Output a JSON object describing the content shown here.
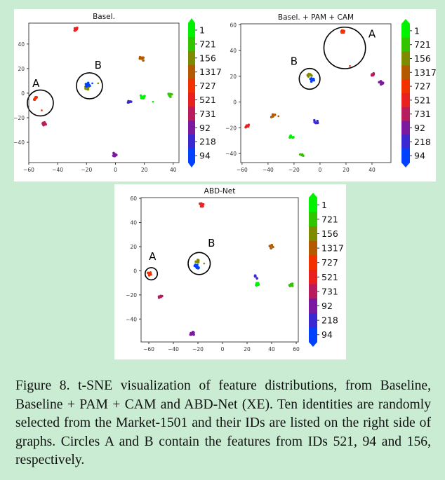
{
  "colors": {
    "1": "#00f200",
    "721": "#33c400",
    "156": "#7e8a00",
    "1317": "#b35a00",
    "727": "#f23000",
    "521": "#e82020",
    "731": "#b81c5c",
    "92": "#7a1aa0",
    "218": "#3a28d0",
    "94": "#0040ff"
  },
  "legend_ids": [
    "1",
    "721",
    "156",
    "1317",
    "727",
    "521",
    "731",
    "92",
    "218",
    "94"
  ],
  "chart_data": [
    {
      "type": "scatter",
      "title": "Basel.",
      "xlim": [
        -60,
        44
      ],
      "ylim": [
        -56.5,
        57
      ],
      "xticks": [
        -60,
        -40,
        -20,
        0,
        20,
        40
      ],
      "yticks": [
        -40,
        -20,
        0,
        20,
        40
      ],
      "clusters": [
        {
          "id": "521",
          "x": -27,
          "y": 52,
          "n": 8
        },
        {
          "id": "1317",
          "x": 18,
          "y": 28,
          "n": 6
        },
        {
          "id": "727",
          "x": -55,
          "y": -4,
          "n": 8
        },
        {
          "id": "727",
          "x": -51,
          "y": -14,
          "n": 1
        },
        {
          "id": "731",
          "x": -49,
          "y": -25,
          "n": 7
        },
        {
          "id": "156",
          "x": -20,
          "y": 4.5,
          "n": 9
        },
        {
          "id": "94",
          "x": -19,
          "y": 7,
          "n": 10
        },
        {
          "id": "94",
          "x": -16,
          "y": 8,
          "n": 1
        },
        {
          "id": "156",
          "x": -12,
          "y": 8,
          "n": 1
        },
        {
          "id": "1",
          "x": 19,
          "y": -3,
          "n": 8
        },
        {
          "id": "1",
          "x": 26,
          "y": -7,
          "n": 1
        },
        {
          "id": "721",
          "x": 38,
          "y": -2,
          "n": 6
        },
        {
          "id": "218",
          "x": 10,
          "y": -8,
          "n": 6
        },
        {
          "id": "92",
          "x": 0,
          "y": -50,
          "n": 8
        }
      ],
      "annotations": [
        {
          "label": "A",
          "x": -52,
          "y": -8,
          "r": 9,
          "tx": -55,
          "ty": 5
        },
        {
          "label": "B",
          "x": -18,
          "y": 6,
          "r": 9,
          "tx": -12,
          "ty": 20
        }
      ]
    },
    {
      "type": "scatter",
      "title": "Basel.  + PAM + CAM",
      "xlim": [
        -61,
        54.6
      ],
      "ylim": [
        -47,
        60.7
      ],
      "xticks": [
        -60,
        -40,
        -20,
        0,
        20,
        40
      ],
      "yticks": [
        -40,
        -20,
        0,
        20,
        40,
        60
      ],
      "clusters": [
        {
          "id": "727",
          "x": 18,
          "y": 55,
          "n": 7
        },
        {
          "id": "727",
          "x": 23,
          "y": 28,
          "n": 1
        },
        {
          "id": "731",
          "x": 40,
          "y": 22,
          "n": 6
        },
        {
          "id": "92",
          "x": 47,
          "y": 15,
          "n": 9
        },
        {
          "id": "156",
          "x": -8,
          "y": 20.5,
          "n": 8
        },
        {
          "id": "94",
          "x": -6,
          "y": 17,
          "n": 9
        },
        {
          "id": "1317",
          "x": -36,
          "y": -11,
          "n": 5
        },
        {
          "id": "1317",
          "x": -32,
          "y": -11,
          "n": 1
        },
        {
          "id": "521",
          "x": -56,
          "y": -19,
          "n": 6
        },
        {
          "id": "218",
          "x": -3,
          "y": -15,
          "n": 6
        },
        {
          "id": "1",
          "x": -22,
          "y": -27,
          "n": 8
        },
        {
          "id": "721",
          "x": -14,
          "y": -41,
          "n": 5
        }
      ],
      "annotations": [
        {
          "label": "A",
          "x": 19,
          "y": 42,
          "r": 16,
          "tx": 40,
          "ty": 50
        },
        {
          "label": "B",
          "x": -8,
          "y": 18,
          "r": 8,
          "tx": -20,
          "ty": 29
        }
      ]
    },
    {
      "type": "scatter",
      "title": "ABD-Net",
      "xlim": [
        -66.3,
        61.7
      ],
      "ylim": [
        -59,
        60.6
      ],
      "xticks": [
        -60,
        -40,
        -20,
        0,
        20,
        40,
        60
      ],
      "yticks": [
        -40,
        -20,
        0,
        20,
        40,
        60
      ],
      "clusters": [
        {
          "id": "521",
          "x": -17,
          "y": 54.5,
          "n": 7
        },
        {
          "id": "1317",
          "x": 40,
          "y": 20,
          "n": 5
        },
        {
          "id": "156",
          "x": -20,
          "y": 7.5,
          "n": 8
        },
        {
          "id": "156",
          "x": -15,
          "y": 6,
          "n": 1
        },
        {
          "id": "94",
          "x": -21,
          "y": 3.5,
          "n": 9
        },
        {
          "id": "727",
          "x": -59,
          "y": -2.5,
          "n": 8
        },
        {
          "id": "218",
          "x": 28,
          "y": -5,
          "n": 6
        },
        {
          "id": "1",
          "x": 28,
          "y": -11,
          "n": 8
        },
        {
          "id": "721",
          "x": 56,
          "y": -12,
          "n": 6
        },
        {
          "id": "731",
          "x": -50,
          "y": -21.5,
          "n": 6
        },
        {
          "id": "92",
          "x": -25,
          "y": -52,
          "n": 9
        }
      ],
      "annotations": [
        {
          "label": "A",
          "x": -58,
          "y": -2.5,
          "r": 5,
          "tx": -57,
          "ty": 9
        },
        {
          "label": "B",
          "x": -19,
          "y": 6,
          "r": 9,
          "tx": -9,
          "ty": 20
        }
      ]
    }
  ],
  "caption": "Figure 8. t-SNE visualization of feature distributions, from Baseline, Baseline + PAM + CAM and ABD-Net (XE). Ten identities are randomly selected from the Market-1501 and their IDs are listed on the right side of graphs.  Circles A and B contain the features from IDs 521, 94 and 156, respectively."
}
